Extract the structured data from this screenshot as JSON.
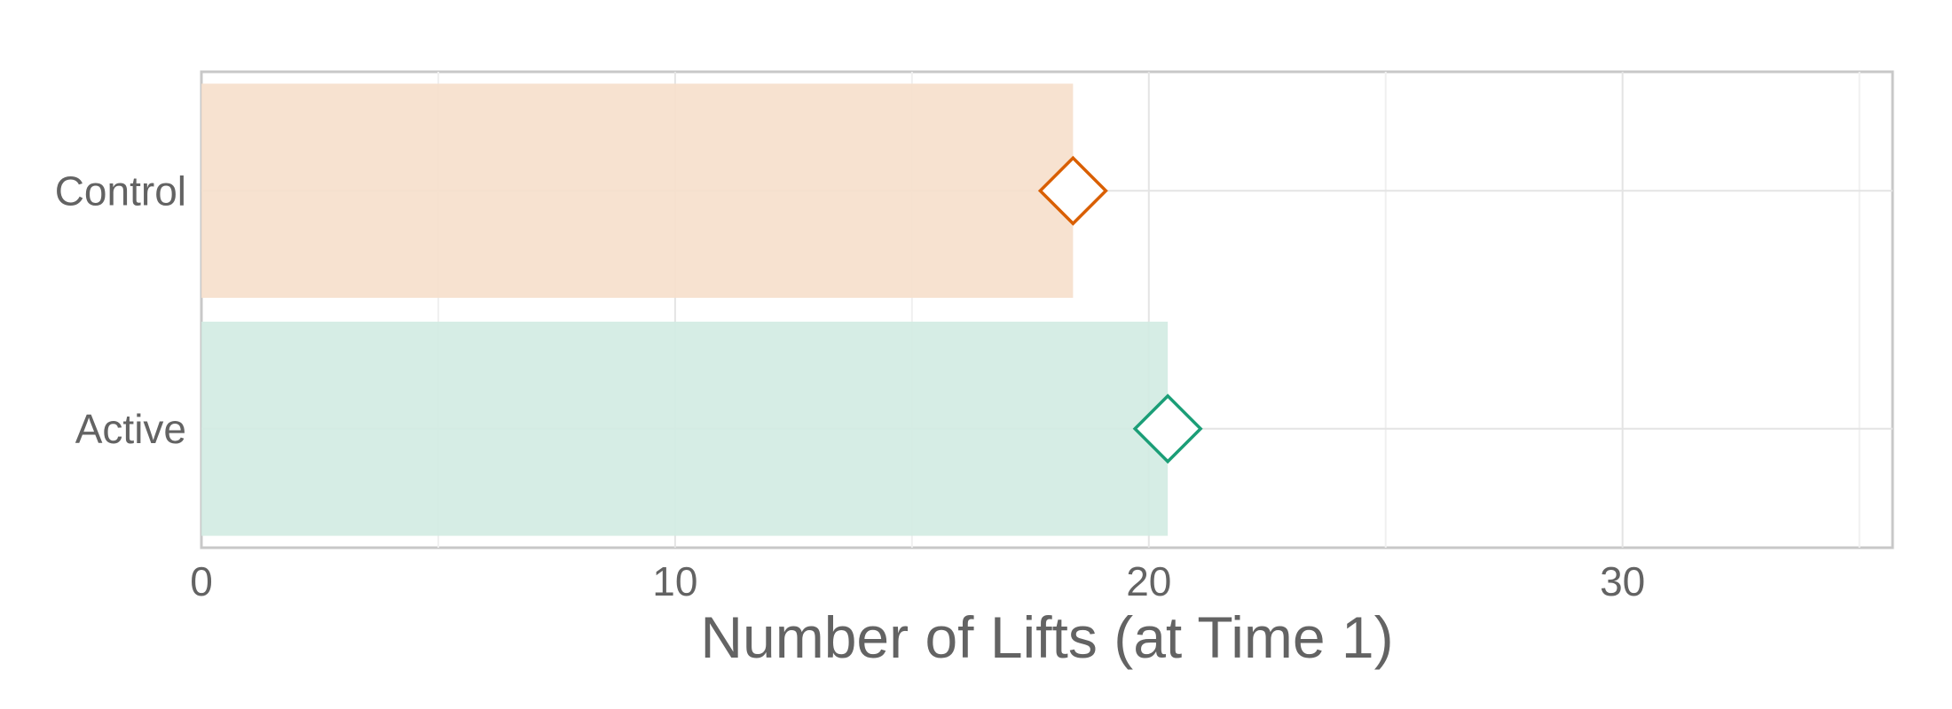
{
  "chart_data": {
    "type": "bar",
    "orientation": "horizontal",
    "categories": [
      "Control",
      "Active"
    ],
    "values": [
      18.4,
      20.4
    ],
    "xlabel": "Number of Lifts (at Time 1)",
    "ylabel": "",
    "xlim": [
      0,
      35.7
    ],
    "xticks": [
      0,
      10,
      20,
      30
    ],
    "xtick_labels": [
      "0",
      "10",
      "20",
      "30"
    ],
    "grid": true,
    "legend": "none",
    "marker": "diamond",
    "colors": {
      "Control": {
        "bar": "#f6dfcc",
        "marker": "#d95f02"
      },
      "Active": {
        "bar": "#d2ebe3",
        "marker": "#1b9e77"
      }
    }
  }
}
